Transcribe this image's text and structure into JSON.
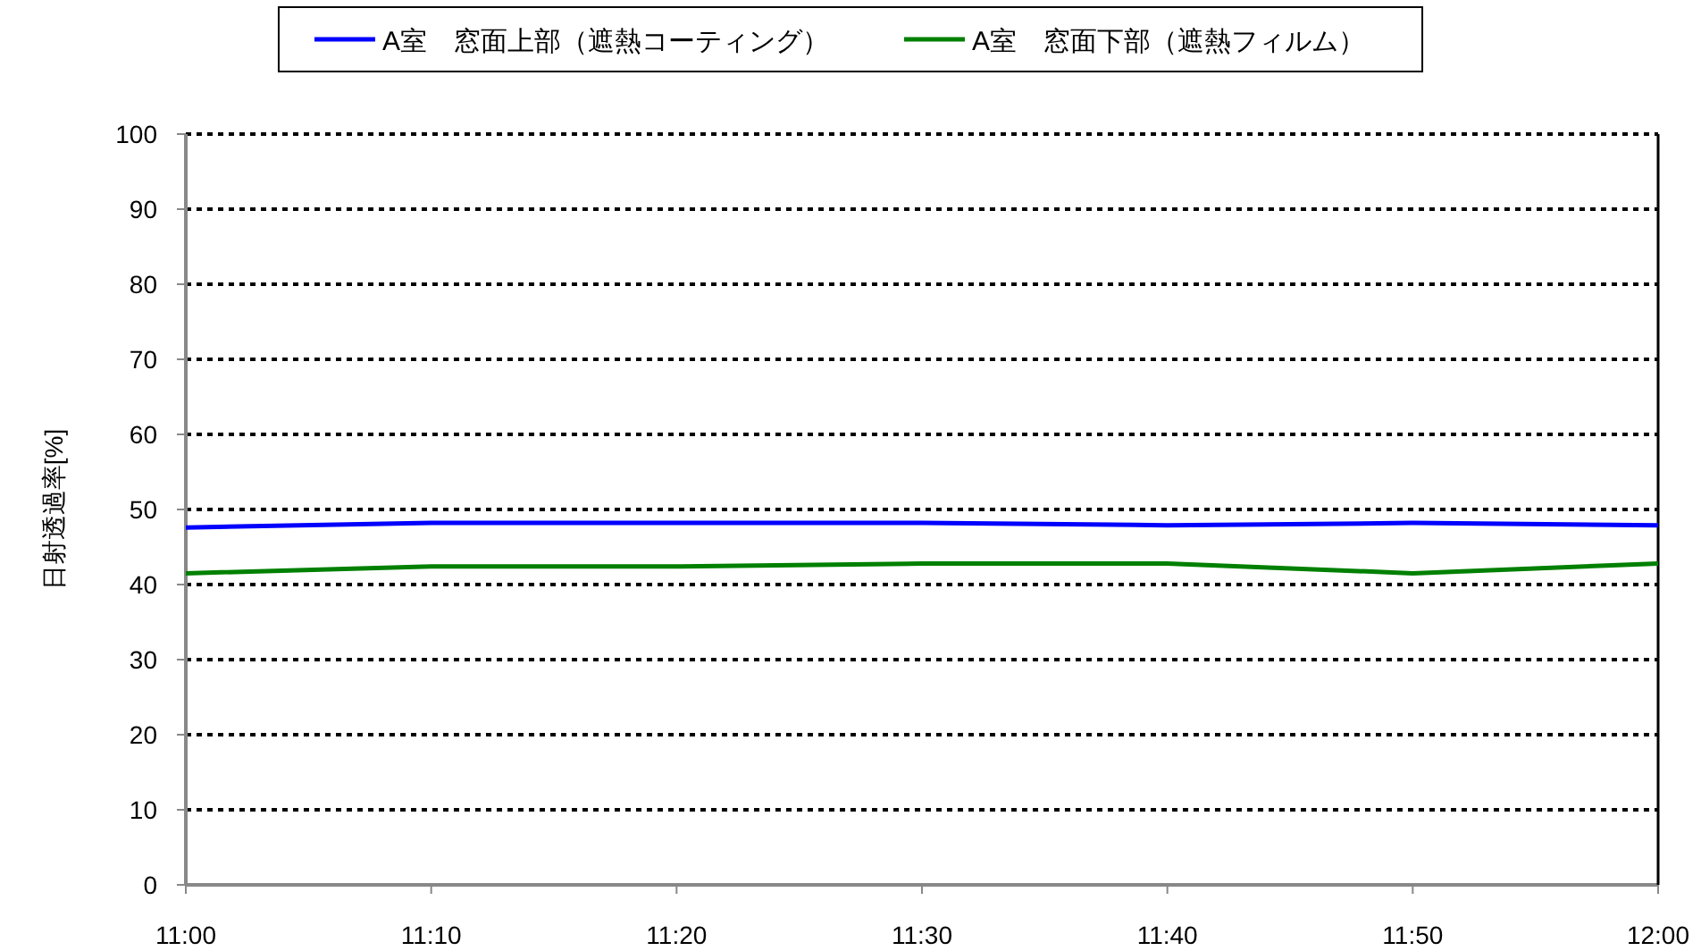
{
  "chart_data": {
    "type": "line",
    "ylabel": "日射透過率[%]",
    "categories": [
      "11:00",
      "11:10",
      "11:20",
      "11:30",
      "11:40",
      "11:50",
      "12:00"
    ],
    "series": [
      {
        "name": "A室　窓面上部（遮熱コーティング）",
        "color": "#0000ff",
        "values": [
          47.6,
          48.2,
          48.2,
          48.2,
          47.9,
          48.2,
          47.9
        ]
      },
      {
        "name": "A室　窓面下部（遮熱フィルム）",
        "color": "#008000",
        "values": [
          41.5,
          42.4,
          42.4,
          42.8,
          42.8,
          41.5,
          42.8
        ]
      }
    ],
    "ylim": [
      0,
      100
    ],
    "yticks": [
      0,
      10,
      20,
      30,
      40,
      50,
      60,
      70,
      80,
      90,
      100
    ],
    "grid": "y",
    "legend": "top",
    "marker": "none",
    "line_style": "solid"
  }
}
